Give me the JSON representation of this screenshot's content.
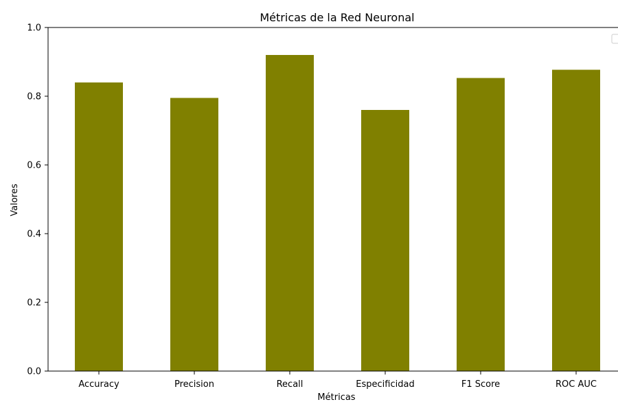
{
  "chart_data": {
    "type": "bar",
    "title": "Métricas de la Red Neuronal",
    "xlabel": "Métricas",
    "ylabel": "Valores",
    "categories": [
      "Accuracy",
      "Precision",
      "Recall",
      "Especificidad",
      "F1 Score",
      "ROC AUC"
    ],
    "values": [
      0.84,
      0.795,
      0.92,
      0.76,
      0.853,
      0.877
    ],
    "ylim": [
      0.0,
      1.0
    ],
    "yticks": [
      "0.0",
      "0.2",
      "0.4",
      "0.6",
      "0.8",
      "1.0"
    ],
    "bar_color": "#808000",
    "grid": false,
    "legend": {
      "placement": "top-right",
      "entries": []
    }
  }
}
